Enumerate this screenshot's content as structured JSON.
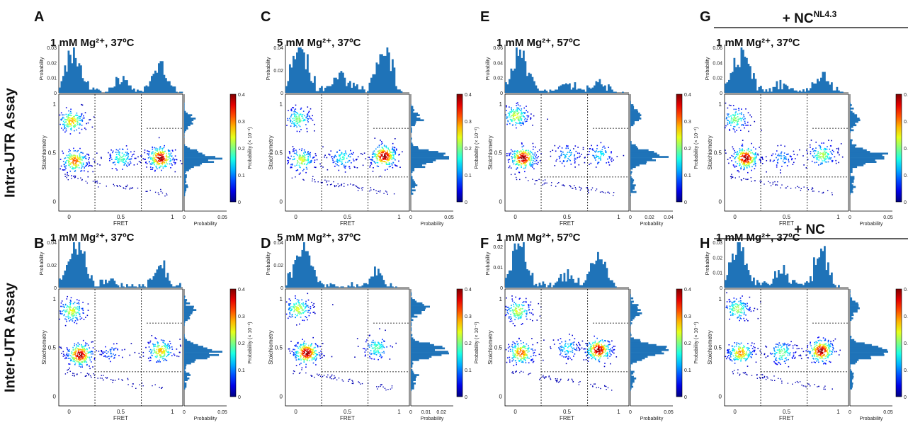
{
  "row_labels": [
    "Intra-UTR Assay",
    "Inter-UTR Assay"
  ],
  "group_headers": [
    {
      "column": "G",
      "text": "+ NC",
      "superscript": "NL4.3"
    },
    {
      "column": "H",
      "text": "+ NC",
      "superscript": ""
    }
  ],
  "colorbar": {
    "label": "Probability (× 10⁻³)",
    "ticks": [
      "0",
      "0.1",
      "0.2",
      "0.3",
      "0.4"
    ],
    "range": [
      0,
      0.4
    ],
    "colormap": "jet"
  },
  "axes_labels": {
    "x_main": "FRET",
    "y_main": "Stoichiometry",
    "top_y": "Probability",
    "right_x": "Probability"
  },
  "colors": {
    "histogram": "#1f73b8",
    "guide_lines": "#000000"
  },
  "chart_data": [
    {
      "panel": "A",
      "type": "heatmap",
      "condition": "1 mM Mg²⁺, 37ºC",
      "xlabel": "FRET",
      "ylabel": "Stoichiometry",
      "x_ticks": [
        "0",
        "0.5",
        "1"
      ],
      "y_ticks": [
        "0",
        "0.5",
        "1"
      ],
      "xlim": [
        -0.1,
        1.1
      ],
      "ylim": [
        -0.1,
        1.1
      ],
      "top_ticks": [
        "0",
        "0.01",
        "0.02",
        "0.03"
      ],
      "top_max": 0.03,
      "right_ticks": [
        "0",
        "0.05"
      ],
      "right_max": 0.05,
      "fret_threshold_lines": [
        0.25,
        0.7
      ],
      "stoich_threshold_lines": [
        0.25,
        0.75
      ],
      "clusters": [
        {
          "fret": 0.88,
          "stoich": 0.45,
          "weight": 1.0
        },
        {
          "fret": 0.02,
          "stoich": 0.83,
          "weight": 0.7
        },
        {
          "fret": 0.05,
          "stoich": 0.42,
          "weight": 0.8
        },
        {
          "fret": 0.5,
          "stoich": 0.45,
          "weight": 0.45
        }
      ]
    },
    {
      "panel": "C",
      "type": "heatmap",
      "condition": "5 mM Mg²⁺, 37ºC",
      "xlabel": "FRET",
      "ylabel": "Stoichiometry",
      "x_ticks": [
        "0",
        "0.5",
        "1"
      ],
      "y_ticks": [
        "0",
        "0.5",
        "1"
      ],
      "xlim": [
        -0.1,
        1.1
      ],
      "ylim": [
        -0.1,
        1.1
      ],
      "top_ticks": [
        "0",
        "0.02",
        "0.04"
      ],
      "top_max": 0.04,
      "right_ticks": [
        "0",
        "0.05"
      ],
      "right_max": 0.05,
      "fret_threshold_lines": [
        0.25,
        0.7
      ],
      "stoich_threshold_lines": [
        0.25,
        0.75
      ],
      "clusters": [
        {
          "fret": 0.85,
          "stoich": 0.47,
          "weight": 1.0
        },
        {
          "fret": 0.02,
          "stoich": 0.85,
          "weight": 0.5
        },
        {
          "fret": 0.05,
          "stoich": 0.43,
          "weight": 0.6
        },
        {
          "fret": 0.45,
          "stoich": 0.45,
          "weight": 0.4
        }
      ]
    },
    {
      "panel": "E",
      "type": "heatmap",
      "condition": "1 mM Mg²⁺, 57ºC",
      "xlabel": "FRET",
      "ylabel": "Stoichiometry",
      "x_ticks": [
        "0",
        "0.5",
        "1"
      ],
      "y_ticks": [
        "0",
        "0.5",
        "1"
      ],
      "xlim": [
        -0.1,
        1.1
      ],
      "ylim": [
        -0.1,
        1.1
      ],
      "top_ticks": [
        "0",
        "0.02",
        "0.04",
        "0.06"
      ],
      "top_max": 0.06,
      "right_ticks": [
        "0",
        "0.02",
        "0.04"
      ],
      "right_max": 0.04,
      "fret_threshold_lines": [
        0.25,
        0.7
      ],
      "stoich_threshold_lines": [
        0.25,
        0.75
      ],
      "clusters": [
        {
          "fret": 0.07,
          "stoich": 0.45,
          "weight": 1.0
        },
        {
          "fret": 0.0,
          "stoich": 0.88,
          "weight": 0.6
        },
        {
          "fret": 0.5,
          "stoich": 0.48,
          "weight": 0.3
        },
        {
          "fret": 0.82,
          "stoich": 0.48,
          "weight": 0.35
        }
      ]
    },
    {
      "panel": "G",
      "type": "heatmap",
      "condition": "1 mM Mg²⁺, 37ºC",
      "xlabel": "FRET",
      "ylabel": "Stoichiometry",
      "x_ticks": [
        "0",
        "0.5",
        "1"
      ],
      "y_ticks": [
        "0",
        "0.5",
        "1"
      ],
      "xlim": [
        -0.1,
        1.1
      ],
      "ylim": [
        -0.1,
        1.1
      ],
      "top_ticks": [
        "0",
        "0.02",
        "0.04",
        "0.06"
      ],
      "top_max": 0.06,
      "right_ticks": [
        "0",
        "0.05"
      ],
      "right_max": 0.05,
      "fret_threshold_lines": [
        0.25,
        0.7
      ],
      "stoich_threshold_lines": [
        0.25,
        0.75
      ],
      "clusters": [
        {
          "fret": 0.1,
          "stoich": 0.45,
          "weight": 1.0
        },
        {
          "fret": 0.0,
          "stoich": 0.85,
          "weight": 0.5
        },
        {
          "fret": 0.84,
          "stoich": 0.48,
          "weight": 0.55
        },
        {
          "fret": 0.45,
          "stoich": 0.45,
          "weight": 0.25
        }
      ]
    },
    {
      "panel": "B",
      "type": "heatmap",
      "condition": "1 mM Mg²⁺, 37ºC",
      "xlabel": "FRET",
      "ylabel": "Stoichiometry",
      "x_ticks": [
        "0",
        "0.5",
        "1"
      ],
      "y_ticks": [
        "0",
        "0.5",
        "1"
      ],
      "xlim": [
        -0.1,
        1.1
      ],
      "ylim": [
        -0.1,
        1.1
      ],
      "top_ticks": [
        "0",
        "0.02",
        "0.04"
      ],
      "top_max": 0.04,
      "right_ticks": [
        "0",
        "0.05"
      ],
      "right_max": 0.05,
      "fret_threshold_lines": [
        0.25,
        0.7
      ],
      "stoich_threshold_lines": [
        0.25,
        0.75
      ],
      "clusters": [
        {
          "fret": 0.1,
          "stoich": 0.43,
          "weight": 1.0
        },
        {
          "fret": 0.02,
          "stoich": 0.88,
          "weight": 0.6
        },
        {
          "fret": 0.88,
          "stoich": 0.47,
          "weight": 0.7
        },
        {
          "fret": 0.4,
          "stoich": 0.45,
          "weight": 0.2
        }
      ]
    },
    {
      "panel": "D",
      "type": "heatmap",
      "condition": "5 mM Mg²⁺, 37ºC",
      "xlabel": "FRET",
      "ylabel": "Stoichiometry",
      "x_ticks": [
        "0",
        "0.5",
        "1"
      ],
      "y_ticks": [
        "0",
        "0.5",
        "1"
      ],
      "xlim": [
        -0.1,
        1.1
      ],
      "ylim": [
        -0.1,
        1.1
      ],
      "top_ticks": [
        "0",
        "0.02",
        "0.04"
      ],
      "top_max": 0.04,
      "right_ticks": [
        "0",
        "0.01",
        "0.02"
      ],
      "right_max": 0.025,
      "fret_threshold_lines": [
        0.25,
        0.7
      ],
      "stoich_threshold_lines": [
        0.25,
        0.75
      ],
      "clusters": [
        {
          "fret": 0.1,
          "stoich": 0.45,
          "weight": 1.0
        },
        {
          "fret": 0.02,
          "stoich": 0.9,
          "weight": 0.6
        },
        {
          "fret": 0.78,
          "stoich": 0.5,
          "weight": 0.45
        }
      ]
    },
    {
      "panel": "F",
      "type": "heatmap",
      "condition": "1 mM Mg²⁺, 57ºC",
      "xlabel": "FRET",
      "ylabel": "Stoichiometry",
      "x_ticks": [
        "0",
        "0.5",
        "1"
      ],
      "y_ticks": [
        "0",
        "0.5",
        "1"
      ],
      "xlim": [
        -0.1,
        1.1
      ],
      "ylim": [
        -0.1,
        1.1
      ],
      "top_ticks": [
        "0",
        "0.01",
        "0.02"
      ],
      "top_max": 0.022,
      "right_ticks": [
        "0",
        "0.05"
      ],
      "right_max": 0.05,
      "fret_threshold_lines": [
        0.25,
        0.7
      ],
      "stoich_threshold_lines": [
        0.25,
        0.75
      ],
      "clusters": [
        {
          "fret": 0.8,
          "stoich": 0.48,
          "weight": 1.0
        },
        {
          "fret": 0.05,
          "stoich": 0.45,
          "weight": 0.8
        },
        {
          "fret": 0.02,
          "stoich": 0.88,
          "weight": 0.6
        },
        {
          "fret": 0.5,
          "stoich": 0.5,
          "weight": 0.35
        }
      ]
    },
    {
      "panel": "H",
      "type": "heatmap",
      "condition": "1 mM Mg²⁺, 37ºC",
      "xlabel": "FRET",
      "ylabel": "Stoichiometry",
      "x_ticks": [
        "0",
        "0.5",
        "1"
      ],
      "y_ticks": [
        "0",
        "0.5",
        "1"
      ],
      "xlim": [
        -0.1,
        1.1
      ],
      "ylim": [
        -0.1,
        1.1
      ],
      "top_ticks": [
        "0",
        "0.01",
        "0.02",
        "0.03"
      ],
      "top_max": 0.03,
      "right_ticks": [
        "0",
        "0.05"
      ],
      "right_max": 0.05,
      "fret_threshold_lines": [
        0.25,
        0.7
      ],
      "stoich_threshold_lines": [
        0.25,
        0.75
      ],
      "clusters": [
        {
          "fret": 0.83,
          "stoich": 0.47,
          "weight": 1.0
        },
        {
          "fret": 0.05,
          "stoich": 0.45,
          "weight": 0.75
        },
        {
          "fret": 0.02,
          "stoich": 0.9,
          "weight": 0.55
        },
        {
          "fret": 0.45,
          "stoich": 0.45,
          "weight": 0.5
        }
      ]
    }
  ]
}
